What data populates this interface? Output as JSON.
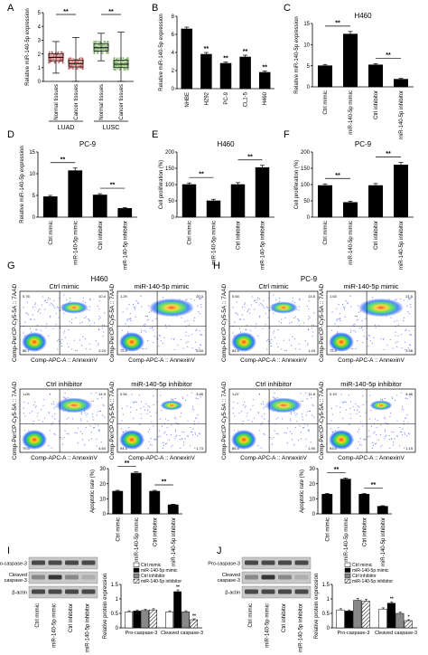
{
  "panel_letters": [
    "A",
    "B",
    "C",
    "D",
    "E",
    "F",
    "G",
    "H",
    "I",
    "J"
  ],
  "chart_data": [
    {
      "panel": "A",
      "type": "box",
      "ylabel": "Relative miR-140-5p expression",
      "ylim": [
        0,
        5
      ],
      "yticks": [
        0,
        1,
        2,
        3,
        4,
        5
      ],
      "categories": [
        "Normal tissues",
        "Cancer tissues",
        "Normal tissues",
        "Cancer tissues"
      ],
      "groups": [
        "LUAD",
        "LUSC"
      ],
      "colors": [
        "#c0504d",
        "#c0504d",
        "#6aa84f",
        "#6aa84f"
      ],
      "boxes": [
        {
          "min": 0.6,
          "q1": 1.5,
          "median": 1.75,
          "q3": 2.0,
          "max": 2.9
        },
        {
          "min": 0.0,
          "q1": 1.05,
          "median": 1.3,
          "q3": 1.55,
          "max": 3.2
        },
        {
          "min": 1.5,
          "q1": 2.2,
          "median": 2.45,
          "q3": 2.75,
          "max": 3.5
        },
        {
          "min": 0.0,
          "q1": 1.0,
          "median": 1.25,
          "q3": 1.55,
          "max": 3.6
        }
      ],
      "significance": "**"
    },
    {
      "panel": "B",
      "type": "bar",
      "ylabel": "Relative miR-140-5p expression",
      "ylim": [
        0,
        8
      ],
      "yticks": [
        0,
        2,
        4,
        6,
        8
      ],
      "categories": [
        "NHBE",
        "H292",
        "PC-9",
        "CL1-5",
        "H460"
      ],
      "values": [
        6.6,
        3.8,
        2.8,
        3.5,
        1.8
      ],
      "errors": [
        0.2,
        0.2,
        0.15,
        0.2,
        0.15
      ],
      "marks": [
        "",
        "**",
        "**",
        "**",
        "**"
      ]
    },
    {
      "panel": "C",
      "type": "bar",
      "title": "H460",
      "ylabel": "Relative miR-140-5p expression",
      "ylim": [
        0,
        15
      ],
      "yticks": [
        0,
        5,
        10,
        15
      ],
      "categories": [
        "Ctrl mimic",
        "miR-140-5p mimic",
        "Ctrl inhibitor",
        "miR-140-5p inhibitor"
      ],
      "values": [
        5.0,
        12.5,
        5.2,
        1.8
      ],
      "errors": [
        0.3,
        0.6,
        0.3,
        0.2
      ],
      "brackets": [
        {
          "from": 0,
          "to": 1,
          "text": "**"
        },
        {
          "from": 2,
          "to": 3,
          "text": "**"
        }
      ]
    },
    {
      "panel": "D",
      "type": "bar",
      "title": "PC-9",
      "ylabel": "Relative miR-140-5p expression",
      "ylim": [
        0,
        15
      ],
      "yticks": [
        0,
        5,
        10,
        15
      ],
      "categories": [
        "Ctrl mimic",
        "miR-140-5p mimic",
        "Ctrl inhibitor",
        "miR-140-5p inhibitor"
      ],
      "values": [
        4.7,
        10.7,
        5.1,
        2.0
      ],
      "errors": [
        0.3,
        0.6,
        0.3,
        0.2
      ],
      "brackets": [
        {
          "from": 0,
          "to": 1,
          "text": "**"
        },
        {
          "from": 2,
          "to": 3,
          "text": "**"
        }
      ]
    },
    {
      "panel": "E",
      "type": "bar",
      "title": "H460",
      "ylabel": "Cell proliferation (%)",
      "ylim": [
        0,
        200
      ],
      "yticks": [
        0,
        50,
        100,
        150,
        200
      ],
      "categories": [
        "Ctrl mimic",
        "miR-140-5p mimic",
        "Ctrl inhibitor",
        "miR-140-5p inhibitor"
      ],
      "values": [
        100,
        50,
        100,
        152
      ],
      "errors": [
        5,
        5,
        6,
        7
      ],
      "brackets": [
        {
          "from": 0,
          "to": 1,
          "text": "**"
        },
        {
          "from": 2,
          "to": 3,
          "text": "**"
        }
      ]
    },
    {
      "panel": "F",
      "type": "bar",
      "title": "PC-9",
      "ylabel": "Cell proliferation (%)",
      "ylim": [
        0,
        200
      ],
      "yticks": [
        0,
        50,
        100,
        150,
        200
      ],
      "categories": [
        "Ctrl mimic",
        "miR-140-5p mimic",
        "Ctrl inhibitor",
        "miR-140-5p inhibitor"
      ],
      "values": [
        97,
        45,
        97,
        160
      ],
      "errors": [
        5,
        4,
        6,
        8
      ],
      "brackets": [
        {
          "from": 0,
          "to": 1,
          "text": "**"
        },
        {
          "from": 2,
          "to": 3,
          "text": "**"
        }
      ]
    },
    {
      "panel": "G",
      "type": "bar",
      "ylabel": "Apoptotic rate (%)",
      "ylim": [
        0,
        30
      ],
      "yticks": [
        0,
        10,
        20,
        30
      ],
      "categories": [
        "Ctrl mimic",
        "miR-140-5p mimic",
        "Ctrl inhibitor",
        "miR-140-5p inhibitor"
      ],
      "values": [
        15,
        27,
        15,
        6
      ],
      "errors": [
        0.6,
        0.8,
        0.6,
        0.4
      ],
      "brackets": [
        {
          "from": 0,
          "to": 1,
          "text": "**"
        },
        {
          "from": 2,
          "to": 3,
          "text": "**"
        }
      ]
    },
    {
      "panel": "H",
      "type": "bar",
      "ylabel": "Apoptotic rate (%)",
      "ylim": [
        0,
        30
      ],
      "yticks": [
        0,
        10,
        20,
        30
      ],
      "categories": [
        "Ctrl mimic",
        "miR-140-5p mimic",
        "Ctrl inhibitor",
        "miR-140-5p inhibitor"
      ],
      "values": [
        13,
        23,
        13,
        5
      ],
      "errors": [
        0.6,
        0.8,
        0.6,
        0.4
      ],
      "brackets": [
        {
          "from": 0,
          "to": 1,
          "text": "**"
        },
        {
          "from": 2,
          "to": 3,
          "text": "**"
        }
      ]
    },
    {
      "panel": "I",
      "type": "bar",
      "ylabel": "Relative protein expression",
      "ylim": [
        0,
        1.5
      ],
      "yticks": [
        0.0,
        0.5,
        1.0,
        1.5
      ],
      "categories": [
        "Pro-caspase-3",
        "Cleaved caspase-3"
      ],
      "series": [
        {
          "name": "Ctrl mimic",
          "values": [
            0.55,
            0.55
          ],
          "errors": [
            0.04,
            0.04
          ]
        },
        {
          "name": "miR-140-5p mimic",
          "values": [
            0.58,
            1.25
          ],
          "errors": [
            0.04,
            0.06
          ]
        },
        {
          "name": "Ctrl inhibitor",
          "values": [
            0.6,
            0.55
          ],
          "errors": [
            0.04,
            0.04
          ]
        },
        {
          "name": "miR-140-5p inhibitor",
          "values": [
            0.62,
            0.28
          ],
          "errors": [
            0.04,
            0.03
          ]
        }
      ],
      "marks": [
        [
          "",
          "",
          "",
          ""
        ],
        [
          "",
          "**",
          "",
          "**"
        ]
      ]
    },
    {
      "panel": "J",
      "type": "bar",
      "ylabel": "Relative protein expression",
      "ylim": [
        0,
        1.5
      ],
      "yticks": [
        0.0,
        0.5,
        1.0,
        1.5
      ],
      "categories": [
        "Pro-caspase-3",
        "Cleaved caspase-3"
      ],
      "series": [
        {
          "name": "Ctrl mimic",
          "values": [
            0.62,
            0.65
          ],
          "errors": [
            0.04,
            0.04
          ]
        },
        {
          "name": "miR-140-5p mimic",
          "values": [
            0.58,
            0.85
          ],
          "errors": [
            0.04,
            0.05
          ]
        },
        {
          "name": "Ctrl inhibitor",
          "values": [
            0.95,
            0.5
          ],
          "errors": [
            0.06,
            0.04
          ]
        },
        {
          "name": "miR-140-5p inhibitor",
          "values": [
            0.92,
            0.25
          ],
          "errors": [
            0.06,
            0.03
          ]
        }
      ],
      "marks": [
        [
          "",
          "",
          "",
          ""
        ],
        [
          "",
          "**",
          "",
          "*"
        ]
      ]
    }
  ],
  "flow_cytometry": {
    "G": {
      "title": "H460",
      "xlabel": "Comp-APC-A :: AnnexinV",
      "ylabel": "Comp-PerCP-Cy5-5A :: 7AAD",
      "plots": [
        {
          "title": "Ctrl mimic",
          "q": [
            "0.76",
            "10.4",
            "86.7",
            "2.24"
          ]
        },
        {
          "title": "miR-140-5p mimic",
          "q": [
            "1.29",
            "20.3",
            "72.9",
            "5.54"
          ]
        },
        {
          "title": "Ctrl inhibitor",
          "q": [
            "1.05",
            "14.9",
            "79.5",
            "4.54"
          ]
        },
        {
          "title": "miR-140-5p inhibitor",
          "q": [
            "0.54",
            "3.45",
            "94.3",
            "1.73"
          ]
        }
      ]
    },
    "H": {
      "title": "PC-9",
      "xlabel": "Comp-APC-A :: AnnexinV",
      "ylabel": "Comp-PerCP-Cy5-5A :: 7AAD",
      "plots": [
        {
          "title": "Ctrl mimic",
          "q": [
            "0.54",
            "13.5",
            "84.5",
            "1.43"
          ]
        },
        {
          "title": "miR-140-5p mimic",
          "q": [
            "1.63",
            "21.5",
            "72.9",
            "3.96"
          ]
        },
        {
          "title": "Ctrl inhibitor",
          "q": [
            "1.07",
            "11.6",
            "85.4",
            "1.90"
          ]
        },
        {
          "title": "miR-140-5p inhibitor",
          "q": [
            "0.19",
            "4.46",
            "93.5",
            "1.15"
          ]
        }
      ]
    }
  },
  "western": {
    "I": {
      "rows": [
        "Pro-caspase-3",
        "Cleaved caspase-3",
        "β-actin"
      ],
      "lanes": [
        "Ctrl mimic",
        "miR-140-5p mimic",
        "Ctrl inhibitor",
        "miR-140-5p inhibitor"
      ]
    },
    "J": {
      "rows": [
        "Pro-caspase-3",
        "Cleaved caspase-3",
        "β-actin"
      ],
      "lanes": [
        "Ctrl mimic",
        "miR-140-5p mimic",
        "Ctrl inhibitor",
        "miR-140-5p inhibitor"
      ]
    }
  },
  "legend_fills": [
    "white",
    "black",
    "gray",
    "hatch"
  ]
}
